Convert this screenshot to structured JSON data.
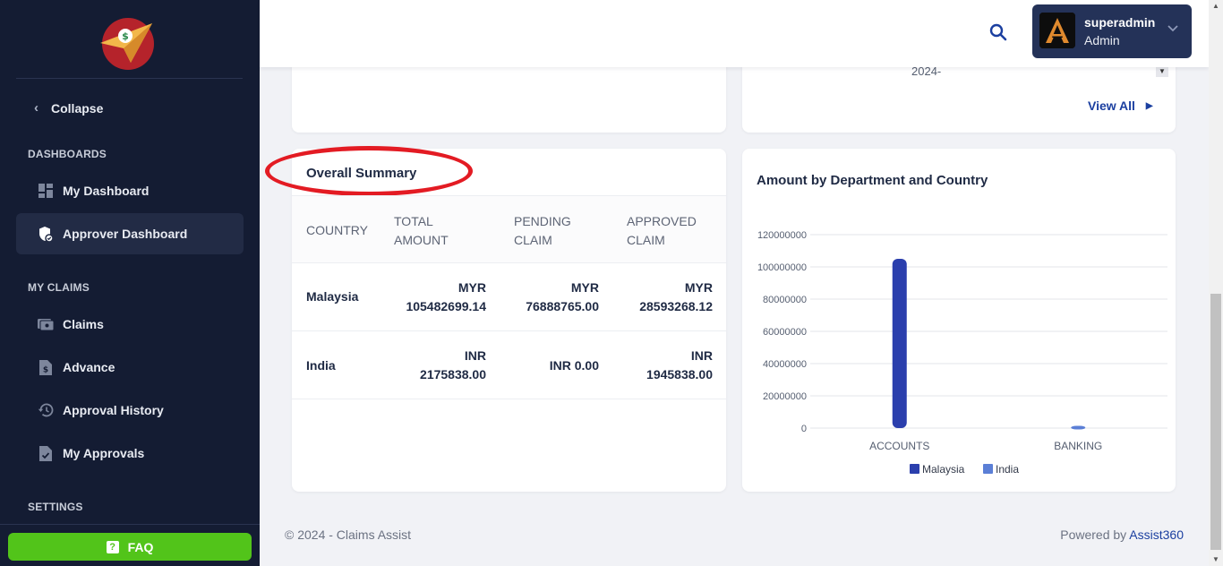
{
  "sidebar": {
    "collapse_label": "Collapse",
    "sections": {
      "dashboards": "DASHBOARDS",
      "my_claims": "MY CLAIMS",
      "settings": "SETTINGS"
    },
    "items": [
      {
        "label": "My Dashboard",
        "icon": "dashboard-grid-icon"
      },
      {
        "label": "Approver Dashboard",
        "icon": "shield-check-icon"
      },
      {
        "label": "Claims",
        "icon": "receipt-icon"
      },
      {
        "label": "Advance",
        "icon": "dollar-doc-icon"
      },
      {
        "label": "Approval History",
        "icon": "history-icon"
      },
      {
        "label": "My Approvals",
        "icon": "checklist-doc-icon"
      }
    ],
    "faq_label": "FAQ"
  },
  "header": {
    "user_name": "superadmin",
    "user_role": "Admin"
  },
  "top_cards": {
    "year_fragment": "2024-",
    "view_all": "View All"
  },
  "summary": {
    "title": "Overall Summary",
    "columns": [
      {
        "line1": "COUNTRY",
        "line2": ""
      },
      {
        "line1": "TOTAL",
        "line2": "AMOUNT"
      },
      {
        "line1": "PENDING",
        "line2": "CLAIM"
      },
      {
        "line1": "APPROVED",
        "line2": "CLAIM"
      }
    ],
    "rows": [
      {
        "country": "Malaysia",
        "total": [
          "MYR",
          "105482699.14"
        ],
        "pending": [
          "MYR",
          "76888765.00"
        ],
        "approved": [
          "MYR",
          "28593268.12"
        ]
      },
      {
        "country": "India",
        "total": [
          "INR",
          "2175838.00"
        ],
        "pending": [
          "INR 0.00"
        ],
        "approved": [
          "INR",
          "1945838.00"
        ]
      }
    ]
  },
  "chart_data": {
    "type": "bar",
    "title": "Amount by Department and Country",
    "categories": [
      "ACCOUNTS",
      "BANKING"
    ],
    "series": [
      {
        "name": "Malaysia",
        "values": [
          105000000,
          0
        ],
        "color": "#2b3fad"
      },
      {
        "name": "India",
        "values": [
          0,
          1400000
        ],
        "color": "#5b7fd6"
      }
    ],
    "y_ticks": [
      0,
      20000000,
      40000000,
      60000000,
      80000000,
      100000000,
      120000000
    ],
    "ylim": [
      0,
      120000000
    ],
    "grid": true,
    "legend_position": "bottom"
  },
  "footer": {
    "copyright": "© 2024 - Claims Assist",
    "powered_by": "Powered by ",
    "brand": "Assist360"
  }
}
